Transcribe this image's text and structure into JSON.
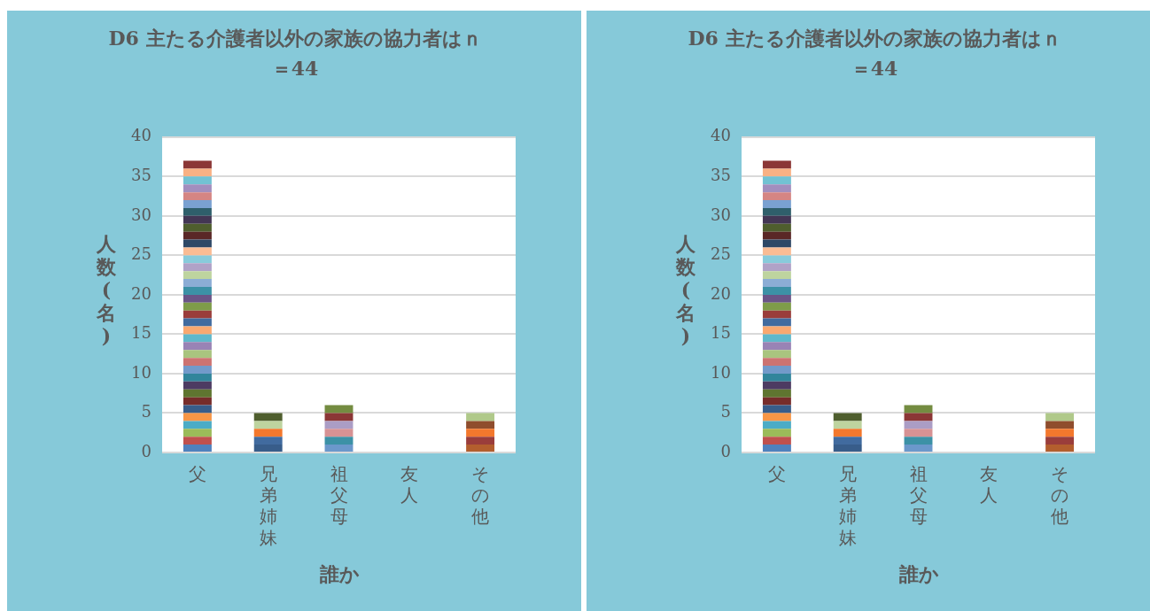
{
  "chart_data": [
    {
      "type": "bar",
      "title": "D6 主たる介護者以外の家族の協力者はｎ＝44",
      "xlabel": "誰か",
      "ylabel": "人数(名)",
      "categories": [
        "父",
        "兄弟姉妹",
        "祖父母",
        "友人",
        "その他"
      ],
      "stacked": true,
      "ylim": [
        0,
        40
      ],
      "yticks": [
        0,
        5,
        10,
        15,
        20,
        25,
        30,
        35,
        40
      ],
      "grid": "y",
      "legend": false,
      "series": [
        {
          "values": [
            1,
            1,
            1,
            null,
            1
          ],
          "colors": [
            "#4f81bd",
            "#385d8a",
            "#6b98cb",
            "#4f81bd",
            "#b35e2e"
          ]
        },
        {
          "values": [
            1,
            1,
            1,
            null,
            1
          ],
          "colors": [
            "#c0504d",
            "#416b9f",
            "#3c91a6",
            "#c0504d",
            "#9a3d3b"
          ]
        },
        {
          "values": [
            1,
            1,
            1,
            null,
            1
          ],
          "colors": [
            "#9bbb59",
            "#f3782d",
            "#d69294",
            "#9bbb59",
            "#f3782d"
          ]
        },
        {
          "values": [
            1,
            1,
            1,
            null,
            1
          ],
          "colors": [
            "#4bacc6",
            "#bed49f",
            "#ab9dc5",
            "#4bacc6",
            "#8f4d2d"
          ]
        },
        {
          "values": [
            1,
            1,
            1,
            null,
            1
          ],
          "colors": [
            "#f79646",
            "#4f5e2e",
            "#8b3636",
            "#f79646",
            "#b0c98a"
          ]
        },
        {
          "values": [
            1,
            null,
            1,
            null,
            null
          ],
          "colors": [
            "#385d8a",
            "#385d8a",
            "#748c41",
            "#385d8a",
            "#385d8a"
          ]
        },
        {
          "values": [
            1,
            null,
            null,
            null,
            null
          ],
          "colors": [
            "#772c2a",
            "#772c2a",
            "#772c2a",
            "#772c2a",
            "#772c2a"
          ]
        },
        {
          "values": [
            1,
            null,
            null,
            null,
            null
          ],
          "colors": [
            "#5f7530",
            "#5f7530",
            "#5f7530",
            "#5f7530",
            "#5f7530"
          ]
        },
        {
          "values": [
            1,
            null,
            null,
            null,
            null
          ],
          "colors": [
            "#4d3b62",
            "#4d3b62",
            "#4d3b62",
            "#4d3b62",
            "#4d3b62"
          ]
        },
        {
          "values": [
            1,
            null,
            null,
            null,
            null
          ],
          "colors": [
            "#31859b",
            "#31859b",
            "#31859b",
            "#31859b",
            "#31859b"
          ]
        },
        {
          "values": [
            1,
            null,
            null,
            null,
            null
          ],
          "colors": [
            "#729aca",
            "#729aca",
            "#729aca",
            "#729aca",
            "#729aca"
          ]
        },
        {
          "values": [
            1,
            null,
            null,
            null,
            null
          ],
          "colors": [
            "#cd7371",
            "#cd7371",
            "#cd7371",
            "#cd7371",
            "#cd7371"
          ]
        },
        {
          "values": [
            1,
            null,
            null,
            null,
            null
          ],
          "colors": [
            "#a9c47f",
            "#a9c47f",
            "#a9c47f",
            "#a9c47f",
            "#a9c47f"
          ]
        },
        {
          "values": [
            1,
            null,
            null,
            null,
            null
          ],
          "colors": [
            "#9983b5",
            "#9983b5",
            "#9983b5",
            "#9983b5",
            "#9983b5"
          ]
        },
        {
          "values": [
            1,
            null,
            null,
            null,
            null
          ],
          "colors": [
            "#5fb8cb",
            "#5fb8cb",
            "#5fb8cb",
            "#5fb8cb",
            "#5fb8cb"
          ]
        },
        {
          "values": [
            1,
            null,
            null,
            null,
            null
          ],
          "colors": [
            "#f9a870",
            "#f9a870",
            "#f9a870",
            "#f9a870",
            "#f9a870"
          ]
        },
        {
          "values": [
            1,
            null,
            null,
            null,
            null
          ],
          "colors": [
            "#416b9f",
            "#416b9f",
            "#416b9f",
            "#416b9f",
            "#416b9f"
          ]
        },
        {
          "values": [
            1,
            null,
            null,
            null,
            null
          ],
          "colors": [
            "#9a3d3b",
            "#9a3d3b",
            "#9a3d3b",
            "#9a3d3b",
            "#9a3d3b"
          ]
        },
        {
          "values": [
            1,
            null,
            null,
            null,
            null
          ],
          "colors": [
            "#7e9c49",
            "#7e9c49",
            "#7e9c49",
            "#7e9c49",
            "#7e9c49"
          ]
        },
        {
          "values": [
            1,
            null,
            null,
            null,
            null
          ],
          "colors": [
            "#6a5487",
            "#6a5487",
            "#6a5487",
            "#6a5487",
            "#6a5487"
          ]
        },
        {
          "values": [
            1,
            null,
            null,
            null,
            null
          ],
          "colors": [
            "#3c91a6",
            "#3c91a6",
            "#3c91a6",
            "#3c91a6",
            "#3c91a6"
          ]
        },
        {
          "values": [
            1,
            null,
            null,
            null,
            null
          ],
          "colors": [
            "#8cadd5",
            "#8cadd5",
            "#8cadd5",
            "#8cadd5",
            "#8cadd5"
          ]
        },
        {
          "values": [
            1,
            null,
            null,
            null,
            null
          ],
          "colors": [
            "#bed49f",
            "#bed49f",
            "#bed49f",
            "#bed49f",
            "#bed49f"
          ]
        },
        {
          "values": [
            1,
            null,
            null,
            null,
            null
          ],
          "colors": [
            "#b0a2c7",
            "#b0a2c7",
            "#b0a2c7",
            "#b0a2c7",
            "#b0a2c7"
          ]
        },
        {
          "values": [
            1,
            null,
            null,
            null,
            null
          ],
          "colors": [
            "#88cbdb",
            "#88cbdb",
            "#88cbdb",
            "#88cbdb",
            "#88cbdb"
          ]
        },
        {
          "values": [
            1,
            null,
            null,
            null,
            null
          ],
          "colors": [
            "#fabc94",
            "#fabc94",
            "#fabc94",
            "#fabc94",
            "#fabc94"
          ]
        },
        {
          "values": [
            1,
            null,
            null,
            null,
            null
          ],
          "colors": [
            "#2e4866",
            "#2e4866",
            "#2e4866",
            "#2e4866",
            "#2e4866"
          ]
        },
        {
          "values": [
            1,
            null,
            null,
            null,
            null
          ],
          "colors": [
            "#5a2726",
            "#5a2726",
            "#5a2726",
            "#5a2726",
            "#5a2726"
          ]
        },
        {
          "values": [
            1,
            null,
            null,
            null,
            null
          ],
          "colors": [
            "#4f5e2e",
            "#4f5e2e",
            "#4f5e2e",
            "#4f5e2e",
            "#4f5e2e"
          ]
        },
        {
          "values": [
            1,
            null,
            null,
            null,
            null
          ],
          "colors": [
            "#433654",
            "#433654",
            "#433654",
            "#433654",
            "#433654"
          ]
        },
        {
          "values": [
            1,
            null,
            null,
            null,
            null
          ],
          "colors": [
            "#2f5f6b",
            "#2f5f6b",
            "#2f5f6b",
            "#2f5f6b",
            "#2f5f6b"
          ]
        },
        {
          "values": [
            1,
            null,
            null,
            null,
            null
          ],
          "colors": [
            "#7aa1d1",
            "#7aa1d1",
            "#7aa1d1",
            "#7aa1d1",
            "#7aa1d1"
          ]
        },
        {
          "values": [
            1,
            null,
            null,
            null,
            null
          ],
          "colors": [
            "#d58583",
            "#d58583",
            "#d58583",
            "#d58583",
            "#d58583"
          ]
        },
        {
          "values": [
            1,
            null,
            null,
            null,
            null
          ],
          "colors": [
            "#a28ebe",
            "#a28ebe",
            "#a28ebe",
            "#a28ebe",
            "#a28ebe"
          ]
        },
        {
          "values": [
            1,
            null,
            null,
            null,
            null
          ],
          "colors": [
            "#72c2d3",
            "#72c2d3",
            "#72c2d3",
            "#72c2d3",
            "#72c2d3"
          ]
        },
        {
          "values": [
            1,
            null,
            null,
            null,
            null
          ],
          "colors": [
            "#f9b184",
            "#f9b184",
            "#f9b184",
            "#f9b184",
            "#f9b184"
          ]
        },
        {
          "values": [
            1,
            null,
            null,
            null,
            null
          ],
          "colors": [
            "#8b3636",
            "#8b3636",
            "#8b3636",
            "#8b3636",
            "#8b3636"
          ]
        }
      ]
    },
    {
      "type": "bar",
      "title": "D6 主たる介護者以外の家族の協力者はｎ＝44",
      "xlabel": "誰か",
      "ylabel": "人数(名)",
      "categories": [
        "父",
        "兄弟姉妹",
        "祖父母",
        "友人",
        "その他"
      ],
      "stacked": true,
      "ylim": [
        0,
        40
      ],
      "yticks": [
        0,
        5,
        10,
        15,
        20,
        25,
        30,
        35,
        40
      ],
      "grid": "y",
      "legend": false,
      "series": [
        {
          "values": [
            1,
            1,
            1,
            null,
            1
          ],
          "colors": [
            "#4f81bd",
            "#385d8a",
            "#6b98cb",
            "#4f81bd",
            "#b35e2e"
          ]
        },
        {
          "values": [
            1,
            1,
            1,
            null,
            1
          ],
          "colors": [
            "#c0504d",
            "#416b9f",
            "#3c91a6",
            "#c0504d",
            "#9a3d3b"
          ]
        },
        {
          "values": [
            1,
            1,
            1,
            null,
            1
          ],
          "colors": [
            "#9bbb59",
            "#f3782d",
            "#d69294",
            "#9bbb59",
            "#f3782d"
          ]
        },
        {
          "values": [
            1,
            1,
            1,
            null,
            1
          ],
          "colors": [
            "#4bacc6",
            "#bed49f",
            "#ab9dc5",
            "#4bacc6",
            "#8f4d2d"
          ]
        },
        {
          "values": [
            1,
            1,
            1,
            null,
            1
          ],
          "colors": [
            "#f79646",
            "#4f5e2e",
            "#8b3636",
            "#f79646",
            "#b0c98a"
          ]
        },
        {
          "values": [
            1,
            null,
            1,
            null,
            null
          ],
          "colors": [
            "#385d8a",
            "#385d8a",
            "#748c41",
            "#385d8a",
            "#385d8a"
          ]
        },
        {
          "values": [
            1,
            null,
            null,
            null,
            null
          ],
          "colors": [
            "#772c2a",
            "#772c2a",
            "#772c2a",
            "#772c2a",
            "#772c2a"
          ]
        },
        {
          "values": [
            1,
            null,
            null,
            null,
            null
          ],
          "colors": [
            "#5f7530",
            "#5f7530",
            "#5f7530",
            "#5f7530",
            "#5f7530"
          ]
        },
        {
          "values": [
            1,
            null,
            null,
            null,
            null
          ],
          "colors": [
            "#4d3b62",
            "#4d3b62",
            "#4d3b62",
            "#4d3b62",
            "#4d3b62"
          ]
        },
        {
          "values": [
            1,
            null,
            null,
            null,
            null
          ],
          "colors": [
            "#31859b",
            "#31859b",
            "#31859b",
            "#31859b",
            "#31859b"
          ]
        },
        {
          "values": [
            1,
            null,
            null,
            null,
            null
          ],
          "colors": [
            "#729aca",
            "#729aca",
            "#729aca",
            "#729aca",
            "#729aca"
          ]
        },
        {
          "values": [
            1,
            null,
            null,
            null,
            null
          ],
          "colors": [
            "#cd7371",
            "#cd7371",
            "#cd7371",
            "#cd7371",
            "#cd7371"
          ]
        },
        {
          "values": [
            1,
            null,
            null,
            null,
            null
          ],
          "colors": [
            "#a9c47f",
            "#a9c47f",
            "#a9c47f",
            "#a9c47f",
            "#a9c47f"
          ]
        },
        {
          "values": [
            1,
            null,
            null,
            null,
            null
          ],
          "colors": [
            "#9983b5",
            "#9983b5",
            "#9983b5",
            "#9983b5",
            "#9983b5"
          ]
        },
        {
          "values": [
            1,
            null,
            null,
            null,
            null
          ],
          "colors": [
            "#5fb8cb",
            "#5fb8cb",
            "#5fb8cb",
            "#5fb8cb",
            "#5fb8cb"
          ]
        },
        {
          "values": [
            1,
            null,
            null,
            null,
            null
          ],
          "colors": [
            "#f9a870",
            "#f9a870",
            "#f9a870",
            "#f9a870",
            "#f9a870"
          ]
        },
        {
          "values": [
            1,
            null,
            null,
            null,
            null
          ],
          "colors": [
            "#416b9f",
            "#416b9f",
            "#416b9f",
            "#416b9f",
            "#416b9f"
          ]
        },
        {
          "values": [
            1,
            null,
            null,
            null,
            null
          ],
          "colors": [
            "#9a3d3b",
            "#9a3d3b",
            "#9a3d3b",
            "#9a3d3b",
            "#9a3d3b"
          ]
        },
        {
          "values": [
            1,
            null,
            null,
            null,
            null
          ],
          "colors": [
            "#7e9c49",
            "#7e9c49",
            "#7e9c49",
            "#7e9c49",
            "#7e9c49"
          ]
        },
        {
          "values": [
            1,
            null,
            null,
            null,
            null
          ],
          "colors": [
            "#6a5487",
            "#6a5487",
            "#6a5487",
            "#6a5487",
            "#6a5487"
          ]
        },
        {
          "values": [
            1,
            null,
            null,
            null,
            null
          ],
          "colors": [
            "#3c91a6",
            "#3c91a6",
            "#3c91a6",
            "#3c91a6",
            "#3c91a6"
          ]
        },
        {
          "values": [
            1,
            null,
            null,
            null,
            null
          ],
          "colors": [
            "#8cadd5",
            "#8cadd5",
            "#8cadd5",
            "#8cadd5",
            "#8cadd5"
          ]
        },
        {
          "values": [
            1,
            null,
            null,
            null,
            null
          ],
          "colors": [
            "#bed49f",
            "#bed49f",
            "#bed49f",
            "#bed49f",
            "#bed49f"
          ]
        },
        {
          "values": [
            1,
            null,
            null,
            null,
            null
          ],
          "colors": [
            "#b0a2c7",
            "#b0a2c7",
            "#b0a2c7",
            "#b0a2c7",
            "#b0a2c7"
          ]
        },
        {
          "values": [
            1,
            null,
            null,
            null,
            null
          ],
          "colors": [
            "#88cbdb",
            "#88cbdb",
            "#88cbdb",
            "#88cbdb",
            "#88cbdb"
          ]
        },
        {
          "values": [
            1,
            null,
            null,
            null,
            null
          ],
          "colors": [
            "#fabc94",
            "#fabc94",
            "#fabc94",
            "#fabc94",
            "#fabc94"
          ]
        },
        {
          "values": [
            1,
            null,
            null,
            null,
            null
          ],
          "colors": [
            "#2e4866",
            "#2e4866",
            "#2e4866",
            "#2e4866",
            "#2e4866"
          ]
        },
        {
          "values": [
            1,
            null,
            null,
            null,
            null
          ],
          "colors": [
            "#5a2726",
            "#5a2726",
            "#5a2726",
            "#5a2726",
            "#5a2726"
          ]
        },
        {
          "values": [
            1,
            null,
            null,
            null,
            null
          ],
          "colors": [
            "#4f5e2e",
            "#4f5e2e",
            "#4f5e2e",
            "#4f5e2e",
            "#4f5e2e"
          ]
        },
        {
          "values": [
            1,
            null,
            null,
            null,
            null
          ],
          "colors": [
            "#433654",
            "#433654",
            "#433654",
            "#433654",
            "#433654"
          ]
        },
        {
          "values": [
            1,
            null,
            null,
            null,
            null
          ],
          "colors": [
            "#2f5f6b",
            "#2f5f6b",
            "#2f5f6b",
            "#2f5f6b",
            "#2f5f6b"
          ]
        },
        {
          "values": [
            1,
            null,
            null,
            null,
            null
          ],
          "colors": [
            "#7aa1d1",
            "#7aa1d1",
            "#7aa1d1",
            "#7aa1d1",
            "#7aa1d1"
          ]
        },
        {
          "values": [
            1,
            null,
            null,
            null,
            null
          ],
          "colors": [
            "#d58583",
            "#d58583",
            "#d58583",
            "#d58583",
            "#d58583"
          ]
        },
        {
          "values": [
            1,
            null,
            null,
            null,
            null
          ],
          "colors": [
            "#a28ebe",
            "#a28ebe",
            "#a28ebe",
            "#a28ebe",
            "#a28ebe"
          ]
        },
        {
          "values": [
            1,
            null,
            null,
            null,
            null
          ],
          "colors": [
            "#72c2d3",
            "#72c2d3",
            "#72c2d3",
            "#72c2d3",
            "#72c2d3"
          ]
        },
        {
          "values": [
            1,
            null,
            null,
            null,
            null
          ],
          "colors": [
            "#f9b184",
            "#f9b184",
            "#f9b184",
            "#f9b184",
            "#f9b184"
          ]
        },
        {
          "values": [
            1,
            null,
            null,
            null,
            null
          ],
          "colors": [
            "#8b3636",
            "#8b3636",
            "#8b3636",
            "#8b3636",
            "#8b3636"
          ]
        }
      ]
    }
  ]
}
